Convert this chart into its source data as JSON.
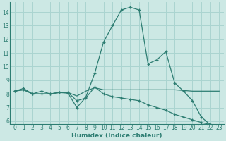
{
  "xlabel": "Humidex (Indice chaleur)",
  "background_color": "#cce8e4",
  "grid_color": "#aad4d0",
  "line_color": "#2d7d72",
  "xlim": [
    -0.5,
    23.5
  ],
  "ylim": [
    5.8,
    14.7
  ],
  "xticks": [
    0,
    1,
    2,
    3,
    4,
    5,
    6,
    7,
    8,
    9,
    10,
    11,
    12,
    13,
    14,
    15,
    16,
    17,
    18,
    19,
    20,
    21,
    22,
    23
  ],
  "yticks": [
    6,
    7,
    8,
    9,
    10,
    11,
    12,
    13,
    14
  ],
  "line1_x": [
    0,
    1,
    2,
    3,
    4,
    5,
    6,
    7,
    8,
    9,
    10,
    11,
    12,
    13,
    14,
    15,
    16,
    17,
    18,
    19,
    20,
    21,
    22,
    23
  ],
  "line1_y": [
    8.2,
    8.4,
    8.0,
    8.2,
    8.0,
    8.1,
    8.05,
    7.0,
    7.75,
    9.5,
    11.8,
    13.0,
    14.15,
    14.35,
    14.15,
    10.2,
    10.5,
    11.1,
    8.8,
    8.2,
    7.5,
    6.3,
    5.75,
    5.7
  ],
  "line2_x": [
    0,
    1,
    2,
    3,
    4,
    5,
    6,
    7,
    8,
    9,
    10,
    11,
    12,
    13,
    14,
    15,
    16,
    17,
    18,
    19,
    20,
    21,
    22,
    23
  ],
  "line2_y": [
    8.2,
    8.3,
    8.0,
    8.0,
    8.0,
    8.1,
    8.1,
    7.85,
    8.2,
    8.45,
    8.3,
    8.3,
    8.3,
    8.3,
    8.3,
    8.3,
    8.3,
    8.3,
    8.3,
    8.25,
    8.2,
    8.2,
    8.2,
    8.2
  ],
  "line3_x": [
    0,
    1,
    2,
    3,
    4,
    5,
    6,
    7,
    8,
    9,
    10,
    11,
    12,
    13,
    14,
    15,
    16,
    17,
    18,
    19,
    20,
    21,
    22,
    23
  ],
  "line3_y": [
    8.2,
    8.3,
    8.0,
    8.0,
    8.0,
    8.1,
    8.1,
    7.5,
    7.7,
    8.5,
    8.0,
    7.8,
    7.7,
    7.6,
    7.5,
    7.2,
    7.0,
    6.8,
    6.5,
    6.3,
    6.1,
    5.9,
    5.75,
    5.7
  ]
}
